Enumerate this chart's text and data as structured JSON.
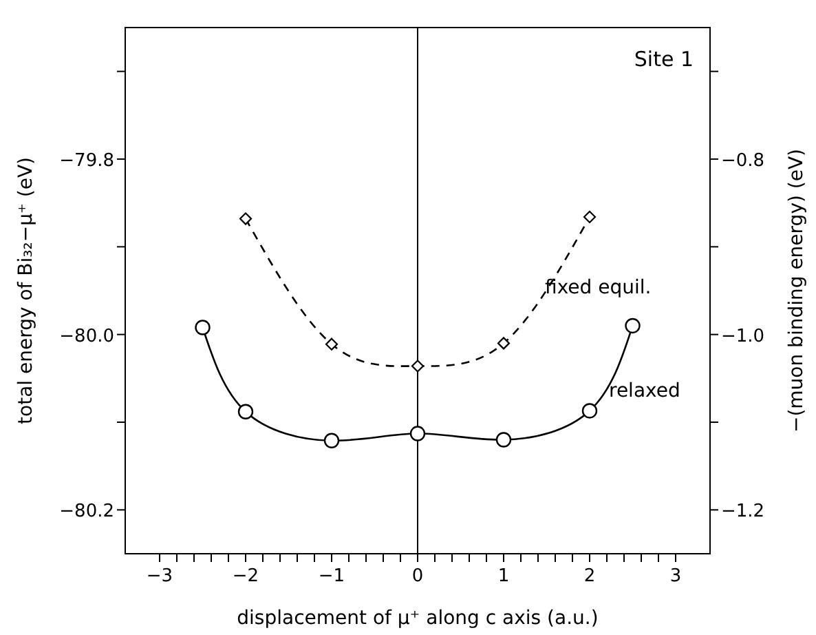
{
  "chart_data": {
    "type": "line",
    "xlabel": "displacement of μ⁺ along c axis (a.u.)",
    "ylabel": "total energy of Bi₃₂−μ⁺ (eV)",
    "y2label": "−(muon binding energy) (eV)",
    "annotations": [
      "Site 1"
    ],
    "xlim": [
      -3.4,
      3.4
    ],
    "xticks": [
      {
        "value": -3,
        "label": "−3"
      },
      {
        "value": -2.8,
        "label": null
      },
      {
        "value": -2.6,
        "label": null
      },
      {
        "value": -2.4,
        "label": null
      },
      {
        "value": -2.2,
        "label": null
      },
      {
        "value": -2,
        "label": "−2"
      },
      {
        "value": -1.8,
        "label": null
      },
      {
        "value": -1.6,
        "label": null
      },
      {
        "value": -1.4,
        "label": null
      },
      {
        "value": -1.2,
        "label": null
      },
      {
        "value": -1,
        "label": "−1"
      },
      {
        "value": -0.8,
        "label": null
      },
      {
        "value": -0.6,
        "label": null
      },
      {
        "value": -0.4,
        "label": null
      },
      {
        "value": -0.2,
        "label": null
      },
      0,
      {
        "value": 0.2,
        "label": null
      },
      {
        "value": 0.4,
        "label": null
      },
      {
        "value": 0.6,
        "label": null
      },
      {
        "value": 0.8,
        "label": null
      },
      1,
      {
        "value": 1.2,
        "label": null
      },
      {
        "value": 1.4,
        "label": null
      },
      {
        "value": 1.6,
        "label": null
      },
      {
        "value": 1.8,
        "label": null
      },
      2,
      {
        "value": 2.2,
        "label": null
      },
      {
        "value": 2.4,
        "label": null
      },
      {
        "value": 2.6,
        "label": null
      },
      {
        "value": 2.8,
        "label": null
      },
      3
    ],
    "ylim": [
      -80.25,
      -79.65
    ],
    "yticks": [
      {
        "value": -80.2,
        "label": "−80.2"
      },
      {
        "value": -80.1,
        "label": null
      },
      {
        "value": -80.0,
        "label": "−80.0"
      },
      {
        "value": -79.9,
        "label": null
      },
      {
        "value": -79.8,
        "label": "−79.8"
      },
      {
        "value": -79.7,
        "label": null
      }
    ],
    "y2lim": [
      -1.25,
      -0.65
    ],
    "y2ticks": [
      {
        "value": -1.2,
        "label": "−1.2"
      },
      {
        "value": -1.1,
        "label": null
      },
      {
        "value": -1.0,
        "label": "−1.0"
      },
      {
        "value": -0.9,
        "label": null
      },
      {
        "value": -0.8,
        "label": "−0.8"
      },
      {
        "value": -0.7,
        "label": null
      }
    ],
    "grid": false,
    "legend": false,
    "ref_lines": [
      {
        "axis": "x",
        "value": 0,
        "color": "#000000",
        "line_style": "solid"
      }
    ],
    "series": [
      {
        "name": "fixed equil.",
        "color": "#000000",
        "marker": "diamond",
        "line_style": "dashed",
        "x": [
          -2,
          -1,
          0,
          1,
          2
        ],
        "values": [
          -79.868,
          -80.011,
          -80.036,
          -80.01,
          -79.866
        ]
      },
      {
        "name": "relaxed",
        "color": "#000000",
        "marker": "circle",
        "line_style": "solid",
        "x": [
          -2.5,
          -2,
          -1,
          0,
          1,
          2,
          2.5
        ],
        "values": [
          -79.992,
          -80.088,
          -80.121,
          -80.113,
          -80.12,
          -80.087,
          -79.99
        ]
      }
    ]
  }
}
